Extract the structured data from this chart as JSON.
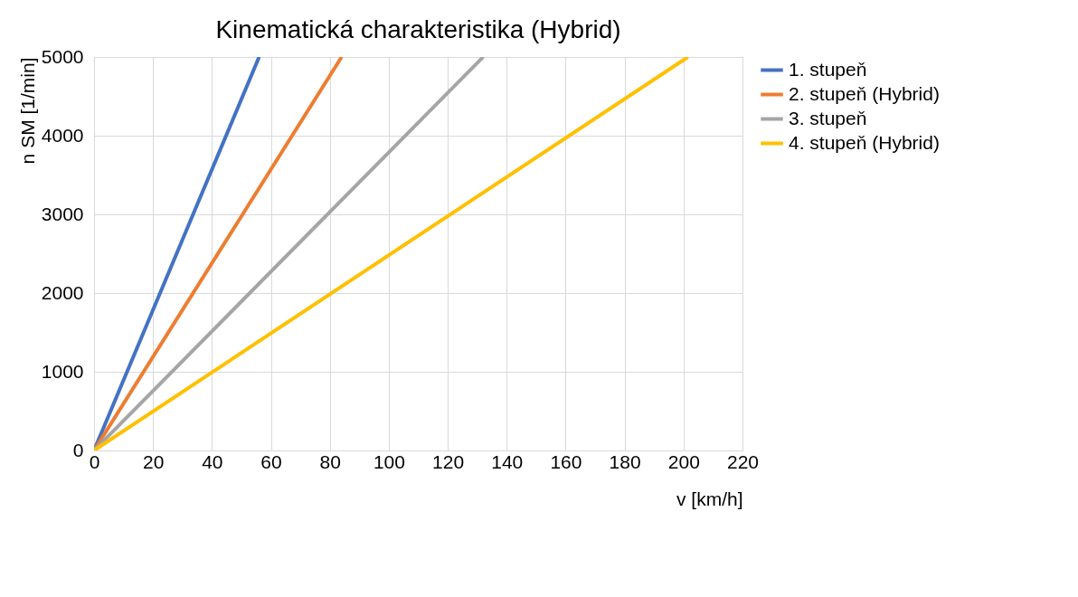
{
  "chart_data": {
    "type": "line",
    "title": "Kinematická charakteristika (Hybrid)",
    "xlabel": "v [km/h]",
    "ylabel": "n SM [1/min]",
    "xlim": [
      0,
      220
    ],
    "xticks": [
      0,
      20,
      40,
      60,
      80,
      100,
      120,
      140,
      160,
      180,
      200,
      220
    ],
    "ylim": [
      0,
      5000
    ],
    "yticks": [
      0,
      1000,
      2000,
      3000,
      4000,
      5000
    ],
    "grid": true,
    "legend": "right",
    "marker": "none",
    "line_style": "solid",
    "series": [
      {
        "name": "1. stupeň",
        "color": "#4472c4",
        "x": [
          0,
          56
        ],
        "values": [
          0,
          5000
        ]
      },
      {
        "name": "2. stupeň (Hybrid)",
        "color": "#ed7d31",
        "x": [
          0,
          84
        ],
        "values": [
          0,
          5000
        ]
      },
      {
        "name": "3. stupeň",
        "color": "#a5a5a5",
        "x": [
          0,
          132
        ],
        "values": [
          0,
          5000
        ]
      },
      {
        "name": "4. stupeň (Hybrid)",
        "color": "#ffc000",
        "x": [
          0,
          201.5
        ],
        "values": [
          0,
          5000
        ]
      }
    ]
  }
}
